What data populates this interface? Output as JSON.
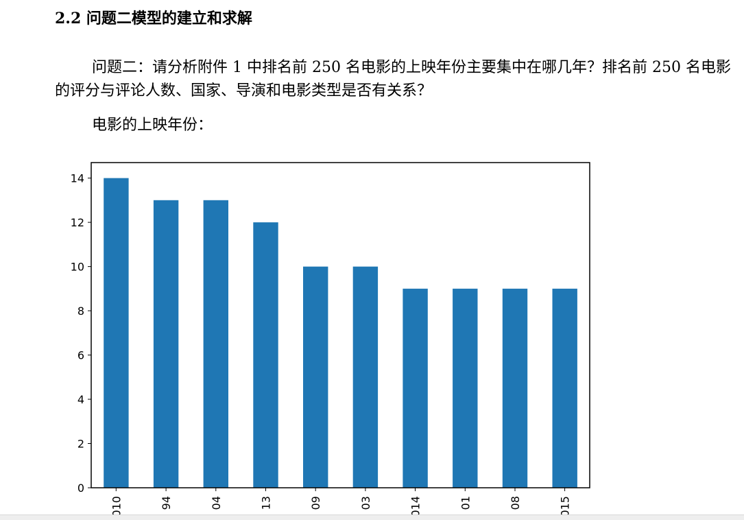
{
  "document": {
    "heading": "2.2 问题二模型的建立和求解",
    "paragraph": "问题二：请分析附件 1 中排名前 250 名电影的上映年份主要集中在哪几年？排名前 250 名电影的评分与评论人数、国家、导演和电影类型是否有关系？",
    "caption": "电影的上映年份："
  },
  "chart_data": {
    "type": "bar",
    "categories": [
      "010",
      "94",
      "04",
      "13",
      "09",
      "03",
      "014",
      "01",
      "08",
      "015"
    ],
    "values": [
      14,
      13,
      13,
      12,
      10,
      10,
      9,
      9,
      9,
      9
    ],
    "ylim": [
      0,
      14.7
    ],
    "yticks": [
      0,
      2,
      4,
      6,
      8,
      10,
      12,
      14
    ],
    "bar_color": "#1f77b4",
    "grid": false,
    "legend": "none",
    "title": "",
    "xlabel": "",
    "ylabel": ""
  }
}
